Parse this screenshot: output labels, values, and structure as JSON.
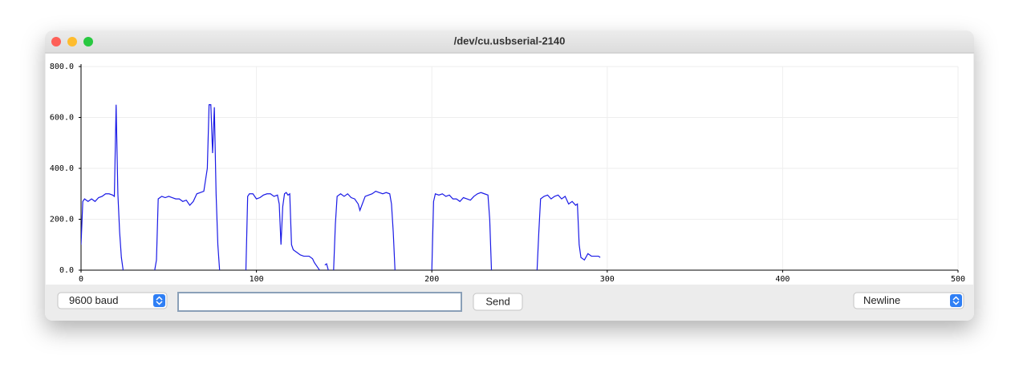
{
  "window": {
    "title": "/dev/cu.usbserial-2140",
    "baud": "9600 baud",
    "send": "Send",
    "line_ending": "Newline"
  },
  "chart_data": {
    "type": "line",
    "color": "#1a1ae6",
    "x": [
      0,
      1,
      2,
      4,
      6,
      8,
      10,
      12,
      14,
      16,
      18,
      19,
      20,
      21,
      22,
      23,
      24,
      33,
      42,
      43,
      44,
      46,
      48,
      50,
      52,
      54,
      56,
      58,
      60,
      62,
      64,
      66,
      68,
      70,
      72,
      73,
      74,
      75,
      76,
      77,
      78,
      79,
      86,
      94,
      95,
      96,
      98,
      100,
      102,
      104,
      106,
      108,
      110,
      112,
      113,
      114,
      115,
      116,
      117,
      118,
      119,
      120,
      121,
      123,
      125,
      127,
      130,
      132,
      133,
      135,
      136,
      137,
      139,
      140,
      141,
      142,
      144,
      145,
      146,
      148,
      150,
      152,
      154,
      156,
      158,
      159,
      162,
      164,
      166,
      168,
      170,
      172,
      174,
      176,
      177,
      178,
      179,
      190,
      200,
      201,
      202,
      204,
      206,
      208,
      210,
      212,
      214,
      216,
      218,
      220,
      222,
      224,
      226,
      228,
      230,
      232,
      233,
      234,
      247,
      260,
      261,
      262,
      264,
      266,
      268,
      270,
      272,
      274,
      276,
      278,
      280,
      282,
      283,
      284,
      285,
      287,
      289,
      291,
      293,
      295,
      296
    ],
    "values": [
      100,
      270,
      280,
      270,
      280,
      270,
      285,
      290,
      300,
      300,
      295,
      290,
      650,
      300,
      150,
      50,
      0,
      null,
      0,
      40,
      280,
      290,
      285,
      290,
      285,
      280,
      280,
      270,
      275,
      255,
      270,
      300,
      305,
      310,
      400,
      650,
      650,
      460,
      640,
      300,
      100,
      0,
      null,
      0,
      290,
      300,
      300,
      280,
      285,
      295,
      300,
      300,
      290,
      295,
      260,
      100,
      250,
      300,
      305,
      295,
      300,
      100,
      80,
      70,
      60,
      55,
      55,
      45,
      30,
      10,
      0,
      null,
      20,
      25,
      0,
      null,
      0,
      180,
      290,
      300,
      290,
      300,
      285,
      280,
      260,
      235,
      290,
      295,
      300,
      310,
      305,
      300,
      305,
      300,
      260,
      150,
      0,
      null,
      0,
      270,
      300,
      295,
      300,
      290,
      295,
      280,
      280,
      270,
      285,
      280,
      275,
      290,
      300,
      305,
      300,
      295,
      200,
      0,
      null,
      0,
      150,
      280,
      290,
      295,
      280,
      290,
      295,
      280,
      290,
      260,
      270,
      255,
      260,
      100,
      50,
      40,
      65,
      55,
      55,
      55,
      50
    ],
    "xlim": [
      0,
      500
    ],
    "ylim": [
      0,
      800
    ],
    "xticks": [
      0,
      100,
      200,
      300,
      400,
      500
    ],
    "yticks": [
      {
        "value": 0,
        "label": "0.0"
      },
      {
        "value": 200,
        "label": "200.0"
      },
      {
        "value": 400,
        "label": "400.0"
      },
      {
        "value": 600,
        "label": "600.0"
      },
      {
        "value": 800,
        "label": "800.0"
      }
    ],
    "grid": true
  }
}
